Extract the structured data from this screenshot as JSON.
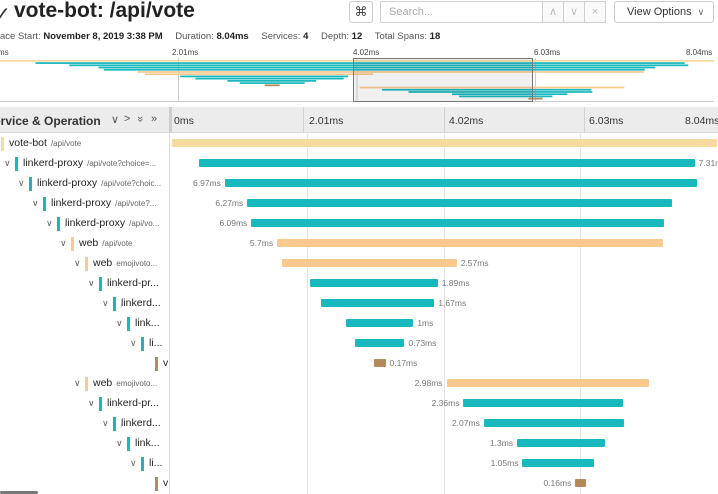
{
  "header": {
    "collapse_icon": "✓",
    "title": "vote-bot: /api/vote",
    "cmd_icon": "⌘",
    "search_placeholder": "Search...",
    "prev_icon": "∧",
    "next_icon": "∨",
    "clear_icon": "×",
    "view_options_label": "View Options",
    "view_options_chevron": "∨"
  },
  "meta": {
    "trace_start_label": "ace Start:",
    "trace_start_value": "November 8, 2019 3:38 PM",
    "duration_label": "Duration:",
    "duration_value": "8.04ms",
    "services_label": "Services:",
    "services_value": "4",
    "depth_label": "Depth:",
    "depth_value": "12",
    "total_spans_label": "Total Spans:",
    "total_spans_value": "18"
  },
  "minimap": {
    "ticks": [
      "ms",
      "2.01ms",
      "4.02ms",
      "6.03ms",
      "8.04ms"
    ]
  },
  "timeline": {
    "column_title": "ervice & Operation",
    "ctrl_collapse_one": "∨",
    "ctrl_expand_one": ">",
    "ctrl_collapse_all": "»",
    "ctrl_expand_all": "»",
    "ticks": [
      "0ms",
      "2.01ms",
      "4.02ms",
      "6.03ms",
      "8.04ms"
    ]
  },
  "colors": {
    "vote-bot": "#f8d9a0",
    "linkerd-proxy": "#17b8be",
    "web": "#f9c98e",
    "other": "#b58a58"
  },
  "spans": [
    {
      "depth": 0,
      "toggle": "",
      "service": "vote-bot",
      "op": "/api/vote",
      "color_key": "vote-bot",
      "start": 0,
      "duration": 8.04,
      "label": "",
      "label_side": "none"
    },
    {
      "depth": 1,
      "toggle": "∨",
      "service": "linkerd-proxy",
      "op": "/api/vote?choice=...",
      "color_key": "linkerd-proxy",
      "start": 0.4,
      "duration": 7.31,
      "label": "7.31ms",
      "label_side": "right"
    },
    {
      "depth": 2,
      "toggle": "∨",
      "service": "linkerd-proxy",
      "op": "/api/vote?choic...",
      "color_key": "linkerd-proxy",
      "start": 0.78,
      "duration": 6.97,
      "label": "6.97ms",
      "label_side": "left"
    },
    {
      "depth": 3,
      "toggle": "∨",
      "service": "linkerd-proxy",
      "op": "/api/vote?...",
      "color_key": "linkerd-proxy",
      "start": 1.11,
      "duration": 6.27,
      "label": "6.27ms",
      "label_side": "left"
    },
    {
      "depth": 4,
      "toggle": "∨",
      "service": "linkerd-proxy",
      "op": "/api/vo...",
      "color_key": "linkerd-proxy",
      "start": 1.17,
      "duration": 6.09,
      "label": "6.09ms",
      "label_side": "left"
    },
    {
      "depth": 5,
      "toggle": "∨",
      "service": "web",
      "op": "/api/vote",
      "color_key": "web",
      "start": 1.55,
      "duration": 5.7,
      "label": "5.7ms",
      "label_side": "left"
    },
    {
      "depth": 6,
      "toggle": "∨",
      "service": "web",
      "op": "emojivoto...",
      "color_key": "web",
      "start": 1.63,
      "duration": 2.57,
      "label": "2.57ms",
      "label_side": "right"
    },
    {
      "depth": 7,
      "toggle": "∨",
      "service": "linkerd-pr...",
      "op": "",
      "color_key": "linkerd-proxy",
      "start": 2.03,
      "duration": 1.89,
      "label": "1.89ms",
      "label_side": "right"
    },
    {
      "depth": 8,
      "toggle": "∨",
      "service": "linkerd...",
      "op": "",
      "color_key": "linkerd-proxy",
      "start": 2.2,
      "duration": 1.67,
      "label": "1.67ms",
      "label_side": "right"
    },
    {
      "depth": 9,
      "toggle": "∨",
      "service": "link...",
      "op": "",
      "color_key": "linkerd-proxy",
      "start": 2.56,
      "duration": 1.0,
      "label": "1ms",
      "label_side": "right"
    },
    {
      "depth": 10,
      "toggle": "∨",
      "service": "li...",
      "op": "",
      "color_key": "linkerd-proxy",
      "start": 2.7,
      "duration": 0.73,
      "label": "0.73ms",
      "label_side": "right"
    },
    {
      "depth": 11,
      "toggle": "",
      "service": "v",
      "op": "",
      "color_key": "other",
      "start": 2.98,
      "duration": 0.17,
      "label": "0.17ms",
      "label_side": "right"
    },
    {
      "depth": 6,
      "toggle": "∨",
      "service": "web",
      "op": "emojivoto...",
      "color_key": "web",
      "start": 4.05,
      "duration": 2.98,
      "label": "2.98ms",
      "label_side": "left"
    },
    {
      "depth": 7,
      "toggle": "∨",
      "service": "linkerd-pr...",
      "op": "",
      "color_key": "linkerd-proxy",
      "start": 4.3,
      "duration": 2.36,
      "label": "2.36ms",
      "label_side": "left"
    },
    {
      "depth": 8,
      "toggle": "∨",
      "service": "linkerd...",
      "op": "",
      "color_key": "linkerd-proxy",
      "start": 4.6,
      "duration": 2.07,
      "label": "2.07ms",
      "label_side": "left"
    },
    {
      "depth": 9,
      "toggle": "∨",
      "service": "link...",
      "op": "",
      "color_key": "linkerd-proxy",
      "start": 5.09,
      "duration": 1.3,
      "label": "1.3ms",
      "label_side": "left"
    },
    {
      "depth": 10,
      "toggle": "∨",
      "service": "li...",
      "op": "",
      "color_key": "linkerd-proxy",
      "start": 5.17,
      "duration": 1.05,
      "label": "1.05ms",
      "label_side": "left"
    },
    {
      "depth": 11,
      "toggle": "",
      "service": "v",
      "op": "",
      "color_key": "other",
      "start": 5.95,
      "duration": 0.16,
      "label": "0.16ms",
      "label_side": "left"
    }
  ]
}
